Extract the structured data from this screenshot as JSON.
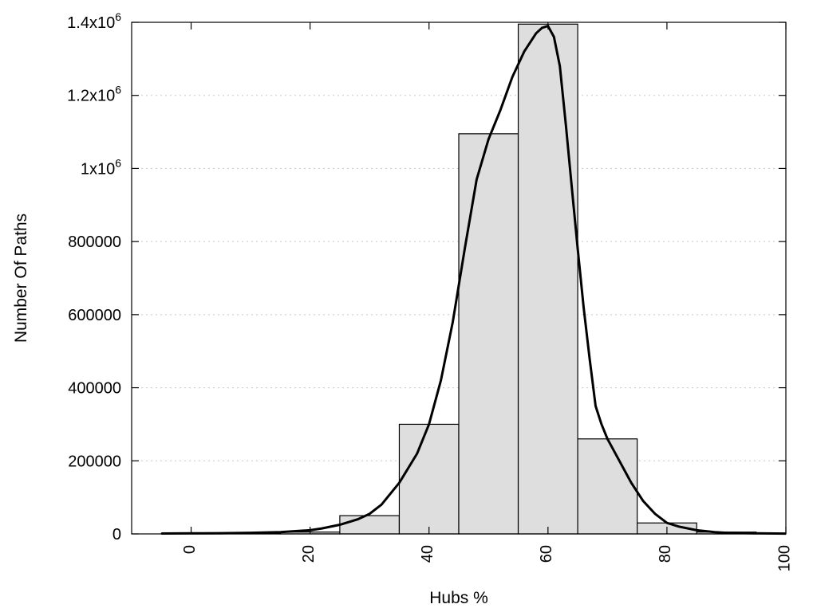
{
  "chart_data": {
    "type": "bar",
    "xlabel": "Hubs %",
    "ylabel": "Number Of Paths",
    "xlim": [
      -10,
      100
    ],
    "ylim": [
      0,
      1400000
    ],
    "x_ticks": [
      {
        "value": 0,
        "label": "0"
      },
      {
        "value": 20,
        "label": "20"
      },
      {
        "value": 40,
        "label": "40"
      },
      {
        "value": 60,
        "label": "60"
      },
      {
        "value": 80,
        "label": "80"
      },
      {
        "value": 100,
        "label": "100"
      }
    ],
    "y_ticks": [
      {
        "value": 0,
        "label": "0"
      },
      {
        "value": 200000,
        "label": "200000"
      },
      {
        "value": 400000,
        "label": "400000"
      },
      {
        "value": 600000,
        "label": "600000"
      },
      {
        "value": 800000,
        "label": "800000"
      },
      {
        "value": 1000000,
        "base": "1x10",
        "exp": "6"
      },
      {
        "value": 1200000,
        "base": "1.2x10",
        "exp": "6"
      },
      {
        "value": 1400000,
        "base": "1.4x10",
        "exp": "6"
      }
    ],
    "grid": "horizontal-dotted",
    "legend": "none",
    "bins": [
      {
        "x0": -5,
        "x1": 5,
        "value": 1500
      },
      {
        "x0": 5,
        "x1": 15,
        "value": 1500
      },
      {
        "x0": 15,
        "x1": 25,
        "value": 5000
      },
      {
        "x0": 25,
        "x1": 35,
        "value": 50000
      },
      {
        "x0": 35,
        "x1": 45,
        "value": 300000
      },
      {
        "x0": 45,
        "x1": 55,
        "value": 1095000
      },
      {
        "x0": 55,
        "x1": 65,
        "value": 1395000
      },
      {
        "x0": 65,
        "x1": 75,
        "value": 260000
      },
      {
        "x0": 75,
        "x1": 85,
        "value": 30000
      },
      {
        "x0": 85,
        "x1": 95,
        "value": 5000
      }
    ],
    "curve": {
      "x": [
        -5,
        0,
        5,
        10,
        15,
        20,
        22,
        25,
        28,
        30,
        32,
        35,
        38,
        40,
        42,
        44,
        46,
        48,
        50,
        52,
        54,
        56,
        58,
        59,
        60,
        61,
        62,
        63,
        64,
        65,
        66,
        67,
        68,
        69,
        70,
        72,
        74,
        76,
        78,
        80,
        82,
        85,
        88,
        90,
        95,
        100
      ],
      "y": [
        1000,
        1500,
        2000,
        3000,
        5000,
        10000,
        15000,
        25000,
        40000,
        55000,
        80000,
        140000,
        220000,
        300000,
        420000,
        580000,
        780000,
        970000,
        1080000,
        1160000,
        1250000,
        1320000,
        1370000,
        1385000,
        1390000,
        1360000,
        1280000,
        1120000,
        950000,
        780000,
        620000,
        480000,
        350000,
        300000,
        260000,
        200000,
        140000,
        90000,
        55000,
        30000,
        20000,
        10000,
        5000,
        3000,
        1500,
        800
      ]
    },
    "colors": {
      "bar_fill": "#dedede",
      "line": "#000000",
      "grid": "#c8c8c8"
    }
  }
}
